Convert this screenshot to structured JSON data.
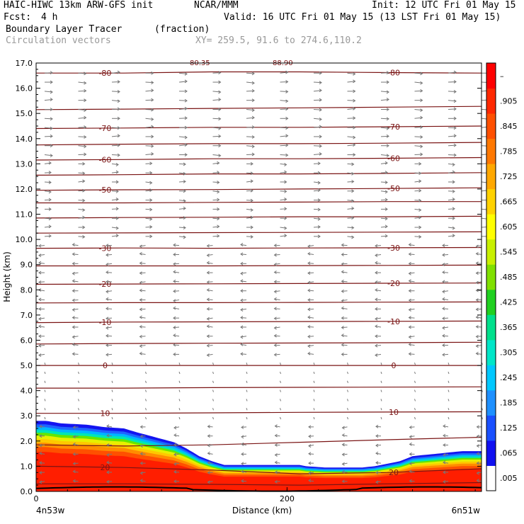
{
  "header": {
    "model": "HAIC-HIWC 13km ARW-GFS init",
    "center": "NCAR/MMM",
    "init": "Init: 12 UTC Fri 01 May 15",
    "fcst_label": "Fcst:",
    "fcst_value": "4 h",
    "valid": "Valid: 16 UTC Fri 01 May 15 (13 LST Fri 01 May 15)",
    "field_name": "Boundary Layer Tracer",
    "field_units": "(fraction)",
    "vector_label": "Circulation vectors",
    "xy_label": "XY= 259.5, 91.6 to 274.6,110.2",
    "top_clip_1": "80.35",
    "top_clip_2": "88.90"
  },
  "chart_data": {
    "type": "area",
    "title": "Boundary Layer Tracer",
    "units": "(fraction)",
    "xlabel": "Distance (km)",
    "ylabel": "Height (km)",
    "xlim": [
      0,
      355
    ],
    "ylim": [
      0,
      17
    ],
    "x_ticks": [
      {
        "v": 0,
        "label": "0"
      },
      {
        "v": 200,
        "label": "200"
      }
    ],
    "x_end_labels": {
      "left": "4n53w",
      "right": "6n51w"
    },
    "y_ticks": [
      "0.0",
      "1.0",
      "2.0",
      "3.0",
      "4.0",
      "5.0",
      "6.0",
      "7.0",
      "8.0",
      "9.0",
      "10.0",
      "11.0",
      "12.0",
      "13.0",
      "14.0",
      "15.0",
      "16.0",
      "17.0"
    ],
    "colorbar": {
      "labels": [
        ".005",
        ".065",
        ".125",
        ".185",
        ".245",
        ".305",
        ".365",
        ".425",
        ".485",
        ".545",
        ".605",
        ".665",
        ".725",
        ".785",
        ".845",
        ".905",
        "–"
      ],
      "colors": [
        "#ffffff",
        "#1010f0",
        "#1a50ff",
        "#1e90ff",
        "#00c8ff",
        "#00e6c8",
        "#00e08c",
        "#20d020",
        "#80e000",
        "#c8f000",
        "#ffff00",
        "#ffd200",
        "#ffa800",
        "#ff7800",
        "#ff5000",
        "#ff2800",
        "#ff0000"
      ]
    },
    "tracer_profile": {
      "x": [
        0,
        8,
        20,
        40,
        55,
        70,
        80,
        95,
        110,
        120,
        130,
        140,
        150,
        160,
        170,
        180,
        200,
        210,
        215,
        230,
        240,
        250,
        260,
        270,
        280,
        290,
        300,
        320,
        340,
        355
      ],
      "top": [
        2.8,
        2.8,
        2.7,
        2.65,
        2.55,
        2.5,
        2.35,
        2.15,
        1.95,
        1.7,
        1.4,
        1.2,
        1.05,
        1.05,
        1.05,
        1.05,
        1.05,
        1.05,
        1.0,
        0.95,
        0.95,
        0.95,
        0.95,
        1.0,
        1.1,
        1.2,
        1.4,
        1.5,
        1.6,
        1.6
      ]
    },
    "contour_lines": [
      {
        "label": "-80",
        "y": [
          16.6,
          16.6,
          16.65,
          16.65,
          16.62,
          16.6
        ]
      },
      {
        "label": "",
        "y": [
          15.15,
          15.17,
          15.2,
          15.22,
          15.25,
          15.28
        ]
      },
      {
        "label": "-70",
        "y": [
          14.4,
          14.42,
          14.45,
          14.45,
          14.47,
          14.5
        ]
      },
      {
        "label": "",
        "y": [
          13.75,
          13.78,
          13.8,
          13.8,
          13.82,
          13.85
        ]
      },
      {
        "label": "-60",
        "y": [
          13.15,
          13.17,
          13.2,
          13.2,
          13.22,
          13.25
        ]
      },
      {
        "label": "",
        "y": [
          12.55,
          12.57,
          12.6,
          12.6,
          12.62,
          12.65
        ]
      },
      {
        "label": "-50",
        "y": [
          11.95,
          11.97,
          11.98,
          12.0,
          12.02,
          12.05
        ]
      },
      {
        "label": "",
        "y": [
          11.45,
          11.45,
          11.47,
          11.48,
          11.5,
          11.5
        ]
      },
      {
        "label": "",
        "y": [
          10.85,
          10.87,
          10.88,
          10.9,
          10.9,
          10.92
        ]
      },
      {
        "label": "",
        "y": [
          10.25,
          10.26,
          10.27,
          10.28,
          10.29,
          10.3
        ]
      },
      {
        "label": "-30",
        "y": [
          9.65,
          9.66,
          9.65,
          9.66,
          9.67,
          9.68
        ]
      },
      {
        "label": "",
        "y": [
          8.95,
          8.95,
          8.95,
          8.96,
          8.97,
          8.98
        ]
      },
      {
        "label": "-20",
        "y": [
          8.22,
          8.23,
          8.24,
          8.25,
          8.26,
          8.27
        ]
      },
      {
        "label": "",
        "y": [
          7.48,
          7.49,
          7.49,
          7.5,
          7.51,
          7.52
        ]
      },
      {
        "label": "-10",
        "y": [
          6.7,
          6.72,
          6.73,
          6.74,
          6.75,
          6.76
        ]
      },
      {
        "label": "",
        "y": [
          5.85,
          5.87,
          5.88,
          5.89,
          5.9,
          5.92
        ]
      },
      {
        "label": "0",
        "y": [
          5.0,
          5.0,
          5.0,
          5.0,
          5.0,
          5.0
        ]
      },
      {
        "label": "",
        "y": [
          4.1,
          4.1,
          4.12,
          4.13,
          4.14,
          4.15
        ]
      },
      {
        "label": "10",
        "y": [
          3.1,
          3.1,
          3.12,
          3.14,
          3.15,
          3.16
        ]
      },
      {
        "label": "",
        "y": [
          1.85,
          1.8,
          1.85,
          1.95,
          2.05,
          2.15
        ]
      },
      {
        "label": "20",
        "y": [
          1.0,
          0.95,
          0.85,
          0.7,
          0.75,
          0.9
        ]
      },
      {
        "label": "",
        "y": [
          0.3,
          0.3,
          0.28,
          0.25,
          0.3,
          0.35
        ]
      }
    ],
    "contour_x": [
      0,
      70,
      140,
      210,
      280,
      355
    ]
  }
}
